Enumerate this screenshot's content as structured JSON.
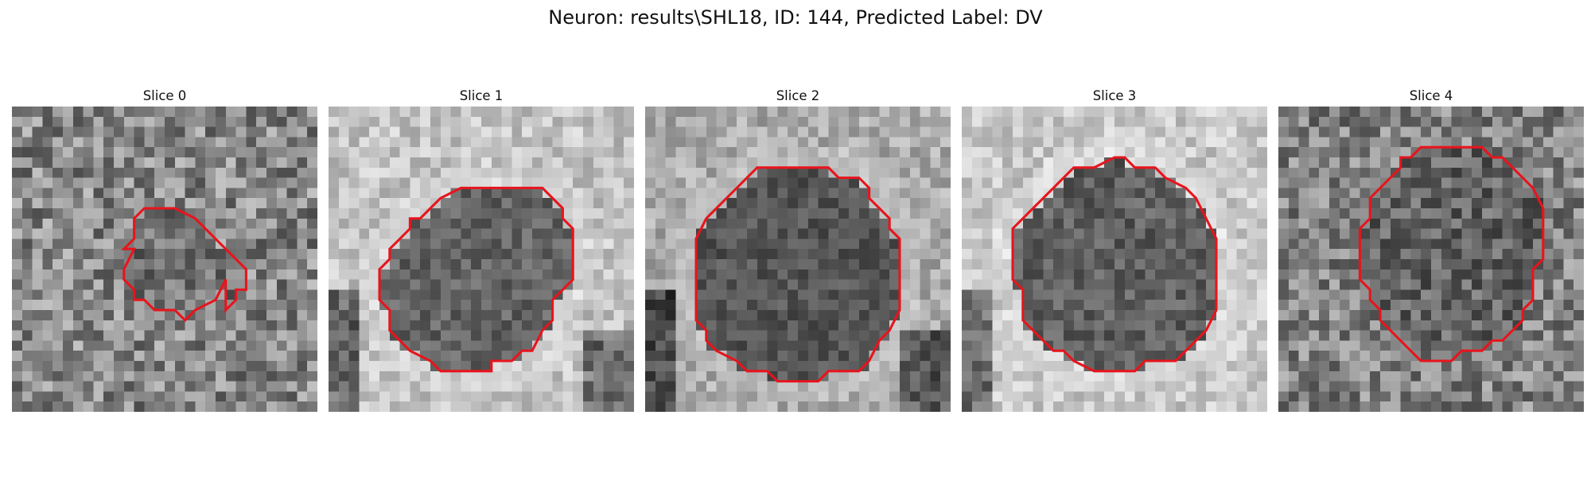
{
  "title": "Neuron: results\\SHL18, ID: 144, Predicted Label: DV",
  "grid": 30,
  "contour_color": "#e8141c",
  "panels": [
    {
      "title": "Slice 0",
      "seed": 11,
      "bg": 135,
      "bgvar": 120,
      "cell": 112,
      "cellvar": 95,
      "ring": 0,
      "dark_edges": [],
      "contour": [
        [
          12,
          11
        ],
        [
          13,
          10
        ],
        [
          16,
          10
        ],
        [
          18,
          11
        ],
        [
          20,
          13
        ],
        [
          23,
          16
        ],
        [
          23,
          18
        ],
        [
          22,
          18
        ],
        [
          22,
          19
        ],
        [
          21,
          20
        ],
        [
          21,
          17
        ],
        [
          20,
          19
        ],
        [
          18,
          20
        ],
        [
          17,
          21
        ],
        [
          17,
          21
        ],
        [
          16,
          20
        ],
        [
          14,
          20
        ],
        [
          13,
          19
        ],
        [
          12,
          19
        ],
        [
          12,
          18
        ],
        [
          11,
          17
        ],
        [
          11,
          16
        ],
        [
          12,
          14
        ],
        [
          11,
          14
        ],
        [
          12,
          13
        ]
      ]
    },
    {
      "title": "Slice 1",
      "seed": 23,
      "bg": 195,
      "bgvar": 70,
      "cell": 100,
      "cellvar": 60,
      "ring": 220,
      "dark_edges": [
        "left-bottom",
        "right-bottom"
      ],
      "contour": [
        [
          10,
          10
        ],
        [
          11,
          9
        ],
        [
          13,
          8
        ],
        [
          21,
          8
        ],
        [
          23,
          10
        ],
        [
          23,
          11
        ],
        [
          24,
          12
        ],
        [
          24,
          17
        ],
        [
          22,
          19
        ],
        [
          22,
          21
        ],
        [
          21,
          22
        ],
        [
          20,
          24
        ],
        [
          19,
          24
        ],
        [
          18,
          25
        ],
        [
          16,
          25
        ],
        [
          16,
          26
        ],
        [
          11,
          26
        ],
        [
          10,
          25
        ],
        [
          8,
          24
        ],
        [
          7,
          23
        ],
        [
          6,
          22
        ],
        [
          6,
          20
        ],
        [
          5,
          19
        ],
        [
          5,
          16
        ],
        [
          6,
          15
        ],
        [
          6,
          14
        ],
        [
          7,
          13
        ],
        [
          8,
          12
        ],
        [
          8,
          11
        ],
        [
          9,
          11
        ]
      ]
    },
    {
      "title": "Slice 2",
      "seed": 37,
      "bg": 170,
      "bgvar": 70,
      "cell": 85,
      "cellvar": 55,
      "ring": 200,
      "dark_edges": [
        "left-bottom",
        "right-bottom"
      ],
      "contour": [
        [
          10,
          7
        ],
        [
          11,
          6
        ],
        [
          13,
          6
        ],
        [
          14,
          6
        ],
        [
          18,
          6
        ],
        [
          19,
          7
        ],
        [
          21,
          7
        ],
        [
          22,
          8
        ],
        [
          22,
          9
        ],
        [
          23,
          10
        ],
        [
          24,
          11
        ],
        [
          24,
          12
        ],
        [
          25,
          13
        ],
        [
          25,
          20
        ],
        [
          24,
          22
        ],
        [
          23,
          23
        ],
        [
          22,
          25
        ],
        [
          21,
          26
        ],
        [
          18,
          26
        ],
        [
          17,
          27
        ],
        [
          13,
          27
        ],
        [
          12,
          26
        ],
        [
          10,
          26
        ],
        [
          9,
          25
        ],
        [
          7,
          24
        ],
        [
          6,
          23
        ],
        [
          6,
          22
        ],
        [
          5,
          21
        ],
        [
          5,
          13
        ],
        [
          6,
          11
        ],
        [
          7,
          10
        ],
        [
          8,
          9
        ],
        [
          9,
          8
        ]
      ]
    },
    {
      "title": "Slice 3",
      "seed": 51,
      "bg": 200,
      "bgvar": 65,
      "cell": 95,
      "cellvar": 65,
      "ring": 225,
      "dark_edges": [
        "left-bottom"
      ],
      "contour": [
        [
          10,
          7
        ],
        [
          11,
          6
        ],
        [
          13,
          6
        ],
        [
          15,
          5
        ],
        [
          16,
          5
        ],
        [
          17,
          6
        ],
        [
          19,
          6
        ],
        [
          20,
          7
        ],
        [
          22,
          8
        ],
        [
          23,
          9
        ],
        [
          24,
          11
        ],
        [
          25,
          13
        ],
        [
          25,
          20
        ],
        [
          24,
          22
        ],
        [
          23,
          23
        ],
        [
          22,
          24
        ],
        [
          21,
          25
        ],
        [
          18,
          25
        ],
        [
          17,
          26
        ],
        [
          13,
          26
        ],
        [
          11,
          25
        ],
        [
          10,
          24
        ],
        [
          9,
          24
        ],
        [
          8,
          23
        ],
        [
          7,
          22
        ],
        [
          6,
          21
        ],
        [
          6,
          18
        ],
        [
          5,
          17
        ],
        [
          5,
          12
        ],
        [
          6,
          11
        ],
        [
          7,
          10
        ],
        [
          8,
          9
        ],
        [
          9,
          8
        ]
      ]
    },
    {
      "title": "Slice 4",
      "seed": 67,
      "bg": 130,
      "bgvar": 110,
      "cell": 100,
      "cellvar": 90,
      "ring": 0,
      "dark_edges": [],
      "contour": [
        [
          12,
          5
        ],
        [
          13,
          5
        ],
        [
          14,
          4
        ],
        [
          20,
          4
        ],
        [
          21,
          5
        ],
        [
          22,
          5
        ],
        [
          24,
          7
        ],
        [
          25,
          8
        ],
        [
          26,
          10
        ],
        [
          26,
          15
        ],
        [
          25,
          16
        ],
        [
          25,
          19
        ],
        [
          24,
          20
        ],
        [
          24,
          21
        ],
        [
          23,
          22
        ],
        [
          22,
          23
        ],
        [
          21,
          23
        ],
        [
          20,
          24
        ],
        [
          18,
          24
        ],
        [
          17,
          25
        ],
        [
          14,
          25
        ],
        [
          13,
          24
        ],
        [
          12,
          23
        ],
        [
          11,
          22
        ],
        [
          10,
          21
        ],
        [
          10,
          20
        ],
        [
          9,
          19
        ],
        [
          9,
          18
        ],
        [
          8,
          17
        ],
        [
          8,
          12
        ],
        [
          9,
          11
        ],
        [
          9,
          9
        ],
        [
          10,
          8
        ],
        [
          11,
          7
        ],
        [
          12,
          6
        ]
      ]
    }
  ]
}
